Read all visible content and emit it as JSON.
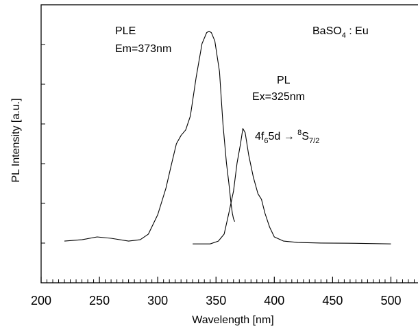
{
  "chart_data": {
    "type": "line",
    "title": "",
    "xlabel": "Wavelength [nm]",
    "ylabel": "PL Intensity [a.u.]",
    "xlim": [
      200,
      525
    ],
    "ylim": [
      0,
      1.0
    ],
    "x_ticks": [
      200,
      250,
      300,
      350,
      400,
      450,
      500
    ],
    "y_tick_labels": false,
    "grid": false,
    "series": [
      {
        "name": "PLE",
        "points": [
          [
            220,
            0.15
          ],
          [
            235,
            0.155
          ],
          [
            248,
            0.165
          ],
          [
            260,
            0.16
          ],
          [
            275,
            0.15
          ],
          [
            285,
            0.155
          ],
          [
            292,
            0.175
          ],
          [
            300,
            0.245
          ],
          [
            307,
            0.34
          ],
          [
            312,
            0.43
          ],
          [
            316,
            0.5
          ],
          [
            320,
            0.53
          ],
          [
            324,
            0.55
          ],
          [
            328,
            0.6
          ],
          [
            333,
            0.74
          ],
          [
            338,
            0.86
          ],
          [
            342,
            0.9
          ],
          [
            344,
            0.905
          ],
          [
            346,
            0.9
          ],
          [
            349,
            0.87
          ],
          [
            353,
            0.76
          ],
          [
            356,
            0.57
          ],
          [
            359,
            0.43
          ],
          [
            361,
            0.36
          ],
          [
            363,
            0.28
          ],
          [
            364,
            0.25
          ],
          [
            365,
            0.23
          ],
          [
            366,
            0.22
          ]
        ]
      },
      {
        "name": "PL",
        "points": [
          [
            330,
            0.14
          ],
          [
            345,
            0.14
          ],
          [
            352,
            0.15
          ],
          [
            357,
            0.175
          ],
          [
            361,
            0.25
          ],
          [
            365,
            0.33
          ],
          [
            368,
            0.43
          ],
          [
            371,
            0.5
          ],
          [
            373,
            0.555
          ],
          [
            375,
            0.54
          ],
          [
            378,
            0.46
          ],
          [
            382,
            0.38
          ],
          [
            386,
            0.32
          ],
          [
            389,
            0.3
          ],
          [
            392,
            0.25
          ],
          [
            396,
            0.2
          ],
          [
            400,
            0.165
          ],
          [
            408,
            0.15
          ],
          [
            420,
            0.145
          ],
          [
            440,
            0.143
          ],
          [
            470,
            0.142
          ],
          [
            500,
            0.14
          ]
        ]
      }
    ],
    "annotations": {
      "ple_label": "PLE",
      "ple_em": "Em=373nm",
      "pl_label": "PL",
      "pl_ex": "Ex=325nm",
      "compound_main": "BaSO",
      "compound_sub": "4",
      "compound_rest": " : Eu",
      "trans_4f": "4f",
      "trans_6": "6",
      "trans_5d": "5d",
      "trans_arrow": " → ",
      "trans_sup8": "8",
      "trans_S": "S",
      "trans_sub72": "7/2"
    }
  }
}
